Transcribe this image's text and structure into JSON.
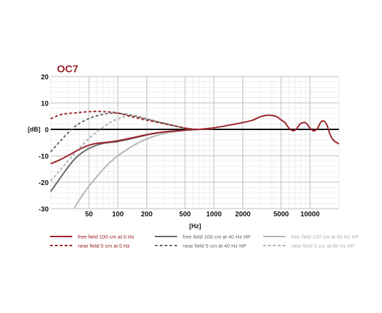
{
  "chart_data": {
    "type": "line",
    "title": "OC7",
    "xlabel": "[Hz]",
    "ylabel": "[dB]",
    "x_scale": "log",
    "xlim": [
      20,
      20000
    ],
    "ylim": [
      -30,
      20
    ],
    "grid": true,
    "x_ticks": [
      {
        "value": 50,
        "label": "50"
      },
      {
        "value": 100,
        "label": "100"
      },
      {
        "value": 200,
        "label": "200"
      },
      {
        "value": 500,
        "label": "500"
      },
      {
        "value": 1000,
        "label": "1000"
      },
      {
        "value": 2000,
        "label": "2000"
      },
      {
        "value": 5000,
        "label": "5000"
      },
      {
        "value": 10000,
        "label": "10000"
      }
    ],
    "y_ticks": [
      {
        "value": 20,
        "label": "20"
      },
      {
        "value": 10,
        "label": "10"
      },
      {
        "value": 0,
        "label": "0"
      },
      {
        "value": -10,
        "label": "-10"
      },
      {
        "value": -20,
        "label": "-20"
      },
      {
        "value": -30,
        "label": "-30"
      }
    ],
    "legend_position": "bottom",
    "series": [
      {
        "name": "free field 100 cm at 0 Hz",
        "color": "#9b2227",
        "dash": "solid",
        "x": [
          20,
          25,
          30,
          40,
          50,
          60,
          80,
          100,
          150,
          200,
          300,
          500,
          700,
          1000,
          1500,
          2000,
          2500,
          3000,
          3500,
          4000,
          4500,
          5000,
          5500,
          6000,
          6500,
          7000,
          7500,
          8000,
          9000,
          10000,
          11000,
          12000,
          13000,
          14000,
          15000,
          16000,
          17000,
          18000,
          20000
        ],
        "y": [
          -13,
          -11.5,
          -10,
          -7.5,
          -6,
          -5.3,
          -4.8,
          -4.3,
          -3,
          -2,
          -1,
          -0.3,
          0,
          0.6,
          1.7,
          2.6,
          3.4,
          4.7,
          5.3,
          5.3,
          4.8,
          3.6,
          2.5,
          0.6,
          -0.4,
          -0.3,
          1,
          2.2,
          2.5,
          0.5,
          -0.6,
          0.5,
          2.8,
          3.1,
          1.6,
          -1.5,
          -3.5,
          -4.5,
          -5.5
        ]
      },
      {
        "name": "near field 5 cm at 0 Hz",
        "color": "#9b2227",
        "dash": "dashed",
        "x": [
          20,
          25,
          30,
          35,
          40,
          50,
          60,
          80,
          100,
          150,
          200,
          300,
          500,
          700,
          1000
        ],
        "y": [
          4,
          5.5,
          6,
          6.2,
          6.4,
          6.7,
          6.8,
          6.6,
          6.2,
          4.5,
          3.5,
          2.2,
          0.5,
          0,
          0.2
        ]
      },
      {
        "name": "free field 100 cm at 40 Hz HP",
        "color": "#666666",
        "dash": "solid",
        "x": [
          20,
          25,
          30,
          35,
          40,
          45,
          50,
          60,
          70,
          80,
          100,
          150,
          200,
          300,
          500,
          700,
          1000
        ],
        "y": [
          -23.5,
          -18.5,
          -14.5,
          -11.5,
          -9.5,
          -8.2,
          -7.2,
          -6,
          -5.3,
          -5,
          -4.6,
          -3.2,
          -2.1,
          -1,
          -0.3,
          0,
          0.3
        ]
      },
      {
        "name": "near field 5 cm at 40 Hz HP",
        "color": "#666666",
        "dash": "dashed",
        "x": [
          20,
          25,
          30,
          35,
          40,
          50,
          60,
          70,
          80,
          100,
          150,
          200,
          300,
          500,
          700,
          1000
        ],
        "y": [
          -8.5,
          -4.5,
          -1.5,
          0.8,
          2.3,
          4.1,
          5.1,
          5.7,
          6,
          6.1,
          5.1,
          3.9,
          2.3,
          0.5,
          0,
          0.2
        ]
      },
      {
        "name": "free field 100 cm at 80 Hz HP",
        "color": "#b3b3b3",
        "dash": "solid",
        "x": [
          35,
          40,
          50,
          60,
          70,
          80,
          100,
          120,
          150,
          200,
          300,
          500,
          700,
          1000
        ],
        "y": [
          -30,
          -26.5,
          -21.5,
          -18,
          -15.2,
          -13,
          -10,
          -8,
          -5.8,
          -3.6,
          -1.6,
          -0.4,
          0,
          0.3
        ]
      },
      {
        "name": "near field 5 cm at 80 Hz HP",
        "color": "#b3b3b3",
        "dash": "dashed",
        "x": [
          20,
          25,
          30,
          40,
          50,
          60,
          80,
          100,
          120,
          150,
          200,
          300,
          500,
          700,
          1000
        ],
        "y": [
          -19.5,
          -15.5,
          -12,
          -7,
          -3.5,
          -1,
          2.2,
          4,
          4.8,
          4.9,
          4,
          2.4,
          0.5,
          0,
          0.2
        ]
      }
    ]
  }
}
